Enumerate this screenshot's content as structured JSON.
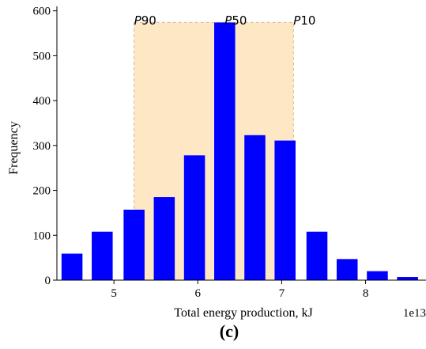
{
  "chart_data": {
    "type": "bar",
    "title": "",
    "xlabel": "Total energy production, kJ",
    "ylabel": "Frequency",
    "x_offset_text": "1e13",
    "x_scale": 10000000000000.0,
    "xlim": [
      4.32,
      8.72
    ],
    "ylim": [
      0,
      610
    ],
    "bin_width": 0.33,
    "bar_width": 0.25,
    "x": [
      4.5,
      4.86,
      5.24,
      5.6,
      5.96,
      6.32,
      6.68,
      7.04,
      7.42,
      7.78,
      8.14,
      8.5
    ],
    "values": [
      59,
      108,
      157,
      185,
      278,
      574,
      323,
      311,
      108,
      47,
      20,
      7
    ],
    "bar_color": "#0000ff",
    "xticks": [
      5,
      6,
      7,
      8
    ],
    "yticks": [
      0,
      100,
      200,
      300,
      400,
      500,
      600
    ],
    "shaded_region": {
      "x_range": [
        5.24,
        7.14
      ],
      "y_top": 574,
      "fill": "#fde7c4",
      "stroke": "#d9b98c"
    },
    "percentile_labels": [
      {
        "text": "P90",
        "italic_char": "P",
        "rest": "90",
        "x": 5.24
      },
      {
        "text": "P50",
        "italic_char": "P",
        "rest": "50",
        "x": 6.32
      },
      {
        "text": "P10",
        "italic_char": "P",
        "rest": "10",
        "x": 7.14
      }
    ],
    "grid": false,
    "legend": "none"
  },
  "panel_label": "(c)"
}
